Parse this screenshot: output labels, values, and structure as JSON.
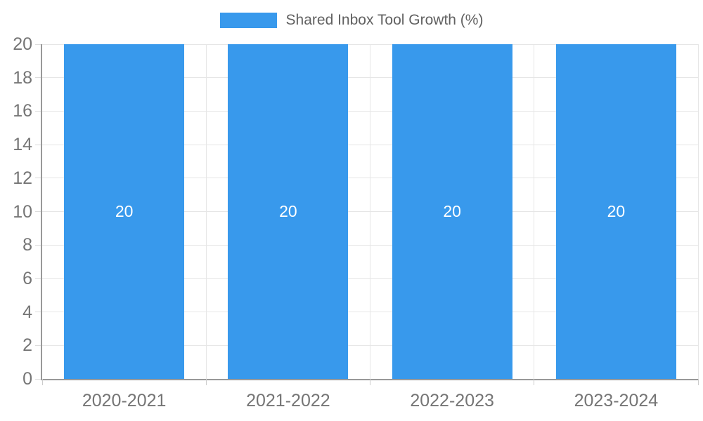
{
  "chart_data": {
    "type": "bar",
    "title": "",
    "series_label": "Shared Inbox Tool Growth (%)",
    "categories": [
      "2020-2021",
      "2021-2022",
      "2022-2023",
      "2023-2024"
    ],
    "values": [
      20,
      20,
      20,
      20
    ],
    "bar_value_labels": [
      "20",
      "20",
      "20",
      "20"
    ],
    "xlabel": "",
    "ylabel": "",
    "ylim": [
      0,
      20
    ],
    "ytick_step": 2,
    "ytick_labels": [
      "0",
      "2",
      "4",
      "6",
      "8",
      "10",
      "12",
      "14",
      "16",
      "18",
      "20"
    ],
    "grid": true,
    "legend_position": "top",
    "colors": {
      "bar": "#3899ec",
      "gridline": "#e6e6e6",
      "axis_line": "#999999",
      "tick_label": "#757575",
      "legend_text": "#616161",
      "bar_value_text": "#ffffff",
      "background": "#ffffff"
    }
  }
}
